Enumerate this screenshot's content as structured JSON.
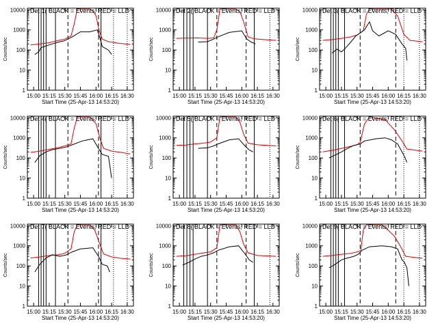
{
  "chart_data": {
    "type": "line",
    "y_scale": "log",
    "ylim": [
      1,
      12000
    ],
    "yticks": [
      1,
      10,
      100,
      1000,
      10000
    ],
    "xlim_hours": [
      14.9,
      16.6
    ],
    "xticks": [
      {
        "label": "15:00",
        "hour": 15.0
      },
      {
        "label": "15:15",
        "hour": 15.25
      },
      {
        "label": "15:30",
        "hour": 15.5
      },
      {
        "label": "15:45",
        "hour": 15.75
      },
      {
        "label": "16:00",
        "hour": 16.0
      },
      {
        "label": "16:15",
        "hour": 16.25
      },
      {
        "label": "16:30",
        "hour": 16.5
      }
    ],
    "xlabel": "Start Time (25-Apr-13 14:53:20)",
    "ylabel": "Counts/sec",
    "series_colors": {
      "events": "#000000",
      "lld": "#e00000"
    },
    "panels": [
      {
        "title": "Det 1( BLACK = Events, RED = LLD",
        "events": [
          [
            15.02,
            60
          ],
          [
            15.08,
            80
          ],
          [
            15.12,
            130
          ],
          [
            15.2,
            160
          ],
          [
            15.3,
            200
          ],
          [
            15.4,
            250
          ],
          [
            15.48,
            280
          ],
          [
            15.55,
            350
          ],
          [
            15.62,
            450
          ],
          [
            15.75,
            800
          ],
          [
            15.9,
            800
          ],
          [
            16.02,
            1000
          ],
          [
            16.06,
            420
          ],
          [
            16.1,
            150
          ],
          [
            16.15,
            120
          ],
          [
            16.2,
            100
          ],
          [
            16.25,
            60
          ]
        ],
        "lld": [
          [
            14.95,
            180
          ],
          [
            15.1,
            200
          ],
          [
            15.25,
            230
          ],
          [
            15.4,
            300
          ],
          [
            15.5,
            350
          ],
          [
            15.6,
            500
          ],
          [
            15.65,
            2000
          ],
          [
            15.7,
            11000
          ],
          [
            15.9,
            11000
          ],
          [
            15.95,
            9000
          ],
          [
            16.0,
            5000
          ],
          [
            16.05,
            900
          ],
          [
            16.1,
            350
          ],
          [
            16.2,
            260
          ],
          [
            16.35,
            220
          ],
          [
            16.55,
            190
          ]
        ]
      },
      {
        "title": "Det 2( BLACK = Events, RED = LLD",
        "events": [
          [
            15.3,
            250
          ],
          [
            15.45,
            260
          ],
          [
            15.55,
            350
          ],
          [
            15.62,
            450
          ],
          [
            15.8,
            750
          ],
          [
            16.0,
            900
          ],
          [
            16.08,
            350
          ],
          [
            16.15,
            250
          ],
          [
            16.22,
            200
          ]
        ],
        "lld": [
          [
            14.95,
            380
          ],
          [
            15.1,
            390
          ],
          [
            15.3,
            400
          ],
          [
            15.45,
            380
          ],
          [
            15.55,
            400
          ],
          [
            15.6,
            1000
          ],
          [
            15.65,
            11000
          ],
          [
            15.9,
            11000
          ],
          [
            15.97,
            8000
          ],
          [
            16.03,
            2500
          ],
          [
            16.1,
            450
          ],
          [
            16.2,
            360
          ],
          [
            16.35,
            330
          ],
          [
            16.55,
            300
          ]
        ]
      },
      {
        "title": "Det 3( BLACK = Events, RED = LLD",
        "events": [
          [
            15.1,
            70
          ],
          [
            15.18,
            110
          ],
          [
            15.25,
            80
          ],
          [
            15.32,
            130
          ],
          [
            15.4,
            250
          ],
          [
            15.48,
            500
          ],
          [
            15.55,
            700
          ],
          [
            15.62,
            1000
          ],
          [
            15.7,
            2500
          ],
          [
            15.75,
            900
          ],
          [
            15.85,
            500
          ],
          [
            16.0,
            900
          ],
          [
            16.12,
            600
          ],
          [
            16.22,
            200
          ],
          [
            16.28,
            120
          ],
          [
            16.3,
            30
          ]
        ],
        "lld": [
          [
            14.95,
            300
          ],
          [
            15.1,
            330
          ],
          [
            15.25,
            380
          ],
          [
            15.4,
            450
          ],
          [
            15.5,
            550
          ],
          [
            15.6,
            900
          ],
          [
            15.65,
            6000
          ],
          [
            15.7,
            11000
          ],
          [
            16.05,
            11000
          ],
          [
            16.15,
            5000
          ],
          [
            16.25,
            600
          ],
          [
            16.35,
            300
          ],
          [
            16.55,
            260
          ]
        ]
      },
      {
        "title": "Det 4( BLACK = Events, RED = LLD",
        "events": [
          [
            15.02,
            60
          ],
          [
            15.1,
            130
          ],
          [
            15.2,
            200
          ],
          [
            15.3,
            260
          ],
          [
            15.42,
            300
          ],
          [
            15.52,
            350
          ],
          [
            15.62,
            450
          ],
          [
            15.78,
            700
          ],
          [
            15.95,
            900
          ],
          [
            16.04,
            300
          ],
          [
            16.1,
            150
          ],
          [
            16.2,
            120
          ],
          [
            16.25,
            10
          ]
        ],
        "lld": [
          [
            14.95,
            190
          ],
          [
            15.1,
            220
          ],
          [
            15.25,
            270
          ],
          [
            15.4,
            330
          ],
          [
            15.5,
            400
          ],
          [
            15.6,
            500
          ],
          [
            15.65,
            3000
          ],
          [
            15.7,
            11000
          ],
          [
            15.9,
            11000
          ],
          [
            16.0,
            5000
          ],
          [
            16.06,
            1000
          ],
          [
            16.12,
            300
          ],
          [
            16.25,
            220
          ],
          [
            16.4,
            190
          ],
          [
            16.55,
            160
          ]
        ]
      },
      {
        "title": "Det 5( BLACK = Events, RED = LLD",
        "events": [
          [
            15.3,
            300
          ],
          [
            15.45,
            320
          ],
          [
            15.55,
            400
          ],
          [
            15.62,
            500
          ],
          [
            15.8,
            800
          ],
          [
            15.95,
            900
          ],
          [
            16.05,
            400
          ],
          [
            16.12,
            250
          ],
          [
            16.18,
            200
          ]
        ],
        "lld": [
          [
            14.95,
            420
          ],
          [
            15.1,
            440
          ],
          [
            15.25,
            500
          ],
          [
            15.4,
            560
          ],
          [
            15.5,
            620
          ],
          [
            15.6,
            1000
          ],
          [
            15.65,
            11000
          ],
          [
            15.9,
            11000
          ],
          [
            15.97,
            6000
          ],
          [
            16.03,
            1500
          ],
          [
            16.1,
            550
          ],
          [
            16.25,
            450
          ],
          [
            16.55,
            400
          ]
        ]
      },
      {
        "title": "Det 6( BLACK = Events, RED = LLD",
        "events": [
          [
            15.05,
            100
          ],
          [
            15.15,
            140
          ],
          [
            15.25,
            200
          ],
          [
            15.35,
            300
          ],
          [
            15.45,
            420
          ],
          [
            15.55,
            500
          ],
          [
            15.62,
            700
          ],
          [
            15.8,
            900
          ],
          [
            15.95,
            1000
          ],
          [
            16.05,
            800
          ],
          [
            16.15,
            500
          ],
          [
            16.22,
            200
          ],
          [
            16.26,
            120
          ],
          [
            16.3,
            60
          ]
        ],
        "lld": [
          [
            14.95,
            200
          ],
          [
            15.1,
            240
          ],
          [
            15.25,
            300
          ],
          [
            15.4,
            380
          ],
          [
            15.5,
            450
          ],
          [
            15.55,
            600
          ],
          [
            15.62,
            5000
          ],
          [
            15.7,
            11000
          ],
          [
            15.95,
            8000
          ],
          [
            16.1,
            2500
          ],
          [
            16.22,
            700
          ],
          [
            16.3,
            280
          ],
          [
            16.45,
            240
          ],
          [
            16.55,
            220
          ]
        ]
      },
      {
        "title": "Det 7( BLACK = Events, RED = LLD",
        "events": [
          [
            15.02,
            50
          ],
          [
            15.1,
            120
          ],
          [
            15.2,
            250
          ],
          [
            15.3,
            360
          ],
          [
            15.42,
            300
          ],
          [
            15.52,
            350
          ],
          [
            15.62,
            500
          ],
          [
            15.75,
            700
          ],
          [
            15.95,
            800
          ],
          [
            16.04,
            300
          ],
          [
            16.1,
            120
          ],
          [
            16.18,
            100
          ],
          [
            16.22,
            50
          ]
        ],
        "lld": [
          [
            14.95,
            250
          ],
          [
            15.1,
            280
          ],
          [
            15.25,
            330
          ],
          [
            15.4,
            360
          ],
          [
            15.5,
            420
          ],
          [
            15.6,
            700
          ],
          [
            15.65,
            5000
          ],
          [
            15.7,
            11000
          ],
          [
            15.9,
            11000
          ],
          [
            15.98,
            6000
          ],
          [
            16.05,
            1500
          ],
          [
            16.12,
            400
          ],
          [
            16.25,
            280
          ],
          [
            16.4,
            240
          ],
          [
            16.55,
            220
          ]
        ]
      },
      {
        "title": "Det 8( BLACK = Events, RED = LLD",
        "events": [
          [
            15.05,
            110
          ],
          [
            15.15,
            150
          ],
          [
            15.25,
            220
          ],
          [
            15.35,
            300
          ],
          [
            15.45,
            350
          ],
          [
            15.55,
            450
          ],
          [
            15.62,
            600
          ],
          [
            15.8,
            900
          ],
          [
            15.95,
            1000
          ],
          [
            16.05,
            400
          ],
          [
            16.12,
            200
          ],
          [
            16.18,
            150
          ]
        ],
        "lld": [
          [
            14.95,
            300
          ],
          [
            15.1,
            320
          ],
          [
            15.25,
            380
          ],
          [
            15.4,
            450
          ],
          [
            15.5,
            500
          ],
          [
            15.6,
            800
          ],
          [
            15.65,
            11000
          ],
          [
            15.9,
            11000
          ],
          [
            15.97,
            5000
          ],
          [
            16.03,
            1200
          ],
          [
            16.1,
            450
          ],
          [
            16.25,
            330
          ],
          [
            16.55,
            300
          ]
        ]
      },
      {
        "title": "Det 9( BLACK = Events, RED = LLD",
        "events": [
          [
            15.05,
            80
          ],
          [
            15.15,
            120
          ],
          [
            15.25,
            200
          ],
          [
            15.35,
            250
          ],
          [
            15.45,
            300
          ],
          [
            15.52,
            380
          ],
          [
            15.58,
            600
          ],
          [
            15.7,
            900
          ],
          [
            15.9,
            1000
          ],
          [
            16.05,
            900
          ],
          [
            16.15,
            700
          ],
          [
            16.22,
            200
          ],
          [
            16.26,
            150
          ],
          [
            16.3,
            80
          ],
          [
            16.33,
            10
          ]
        ],
        "lld": [
          [
            14.95,
            300
          ],
          [
            15.1,
            330
          ],
          [
            15.25,
            380
          ],
          [
            15.4,
            420
          ],
          [
            15.5,
            500
          ],
          [
            15.56,
            600
          ],
          [
            15.6,
            6000
          ],
          [
            15.65,
            11000
          ],
          [
            15.9,
            11000
          ],
          [
            16.0,
            6000
          ],
          [
            16.1,
            3000
          ],
          [
            16.2,
            900
          ],
          [
            16.28,
            300
          ],
          [
            16.45,
            260
          ],
          [
            16.55,
            240
          ]
        ]
      }
    ]
  }
}
